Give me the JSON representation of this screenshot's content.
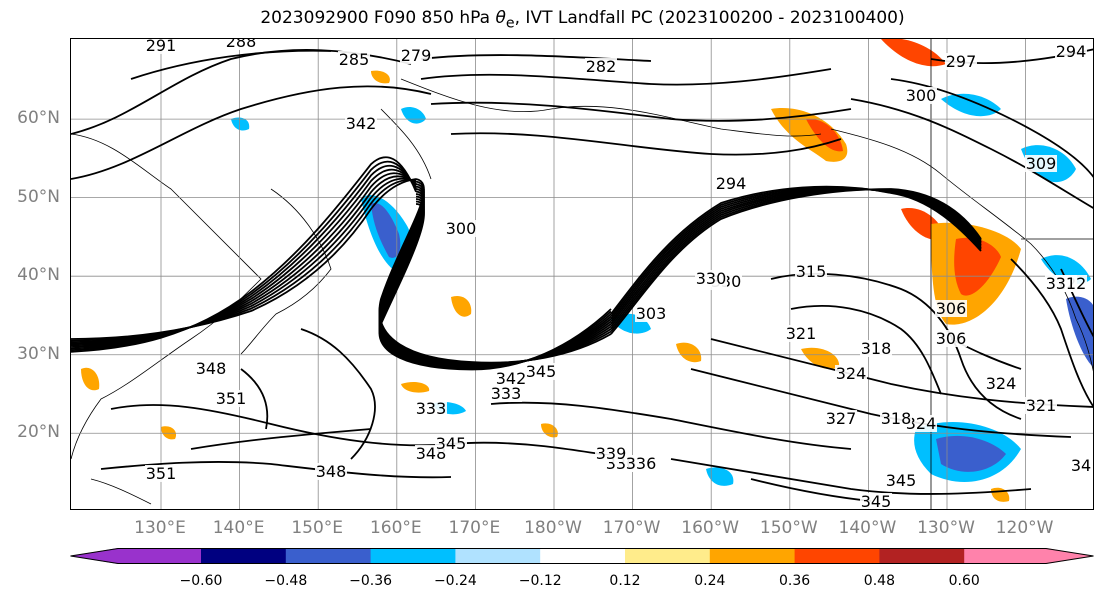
{
  "title": {
    "prefix": "2023092900 F090 850 hPa ",
    "theta": "θ",
    "sub": "e",
    "suffix": ", IVT Landfall PC (2023100200 - 2023100400)"
  },
  "lat_labels": [
    {
      "text": "60°N",
      "value": 60
    },
    {
      "text": "50°N",
      "value": 50
    },
    {
      "text": "40°N",
      "value": 40
    },
    {
      "text": "30°N",
      "value": 30
    },
    {
      "text": "20°N",
      "value": 20
    }
  ],
  "lon_labels": [
    "130°E",
    "140°E",
    "150°E",
    "160°E",
    "170°E",
    "180°W",
    "170°W",
    "160°W",
    "150°W",
    "140°W",
    "130°W",
    "120°W"
  ],
  "contour_labels": [
    "291",
    "288",
    "279",
    "285",
    "282",
    "297",
    "300",
    "294",
    "294",
    "300",
    "306",
    "309",
    "312",
    "315",
    "306",
    "318",
    "324",
    "327",
    "318",
    "324",
    "321",
    "330",
    "333",
    "336",
    "339",
    "345",
    "345",
    "348",
    "345",
    "348",
    "351",
    "351",
    "348",
    "312",
    "342",
    "345",
    "336",
    "333",
    "342",
    "309",
    "303",
    "330",
    "321",
    "324",
    "34"
  ],
  "colorbar": {
    "colors": [
      "#9932CC",
      "#000080",
      "#3A5FCD",
      "#00BFFF",
      "#B0E2FF",
      "#FFFFFF",
      "#FFEC8B",
      "#FFA500",
      "#FF4500",
      "#B22222",
      "#FF82AB"
    ],
    "ticks": [
      "−0.60",
      "−0.48",
      "−0.36",
      "−0.24",
      "−0.12",
      "0.12",
      "0.24",
      "0.36",
      "0.48",
      "0.60"
    ]
  }
}
